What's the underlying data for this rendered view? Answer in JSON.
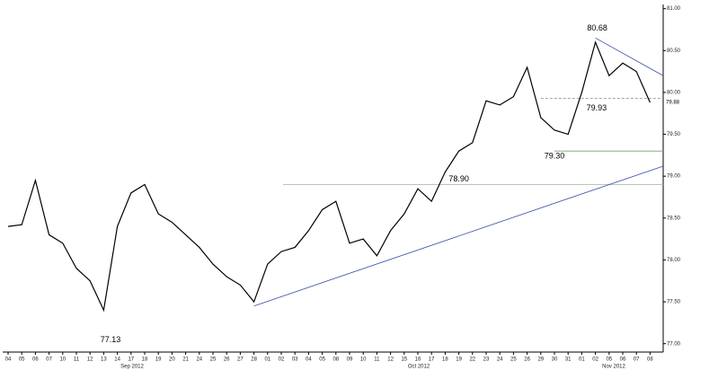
{
  "chart_data": {
    "type": "line",
    "categories": [
      "04",
      "05",
      "06",
      "07",
      "10",
      "11",
      "12",
      "13",
      "14",
      "17",
      "18",
      "19",
      "20",
      "21",
      "24",
      "25",
      "26",
      "27",
      "28",
      "01",
      "02",
      "03",
      "04",
      "05",
      "08",
      "09",
      "10",
      "11",
      "12",
      "15",
      "16",
      "17",
      "18",
      "19",
      "22",
      "23",
      "24",
      "25",
      "26",
      "29",
      "30",
      "31",
      "01",
      "02",
      "05",
      "06",
      "07",
      "08"
    ],
    "x_groups": [
      "Sep 2012",
      "Oct 2012",
      "Nov 2012"
    ],
    "series": [
      {
        "color": "#000000",
        "values": [
          78.4,
          78.42,
          78.95,
          78.3,
          78.2,
          77.9,
          77.75,
          77.4,
          78.4,
          78.8,
          78.9,
          78.55,
          78.45,
          78.3,
          78.15,
          77.95,
          77.8,
          77.7,
          77.5,
          77.95,
          78.1,
          78.15,
          78.35,
          78.6,
          78.7,
          78.2,
          78.25,
          78.05,
          78.35,
          78.55,
          78.85,
          78.7,
          79.05,
          79.3,
          79.4,
          79.9,
          79.85,
          79.95,
          80.3,
          79.7,
          79.55,
          79.5,
          80.0,
          80.6,
          80.2,
          80.35,
          80.25,
          79.88
        ]
      }
    ],
    "ylim": [
      76.9,
      81.05
    ],
    "yticks": [
      {
        "value": 77.0,
        "label": "77.00"
      },
      {
        "value": 77.5,
        "label": "77.50"
      },
      {
        "value": 78.0,
        "label": "78.00"
      },
      {
        "value": 78.5,
        "label": "78.50"
      },
      {
        "value": 79.0,
        "label": "79.00"
      },
      {
        "value": 79.5,
        "label": "79.50"
      },
      {
        "value": 80.0,
        "label": "80.00"
      },
      {
        "value": 80.5,
        "label": "80.50"
      },
      {
        "value": 81.0,
        "label": "81.00"
      }
    ],
    "annotations": [
      {
        "value": 77.13,
        "label": "77.13"
      },
      {
        "value": 78.9,
        "label": "78.90"
      },
      {
        "value": 79.3,
        "label": "79.30"
      },
      {
        "value": 79.93,
        "label": "79.93"
      },
      {
        "value": 80.68,
        "label": "80.68"
      },
      {
        "value": 79.88,
        "label": "79.88"
      }
    ],
    "trendlines": [
      {
        "color": "#3a4aa8",
        "values": [
          77.45,
          79.12
        ]
      },
      {
        "color": "#3a4aa8",
        "values": [
          80.65,
          80.2
        ]
      }
    ]
  }
}
